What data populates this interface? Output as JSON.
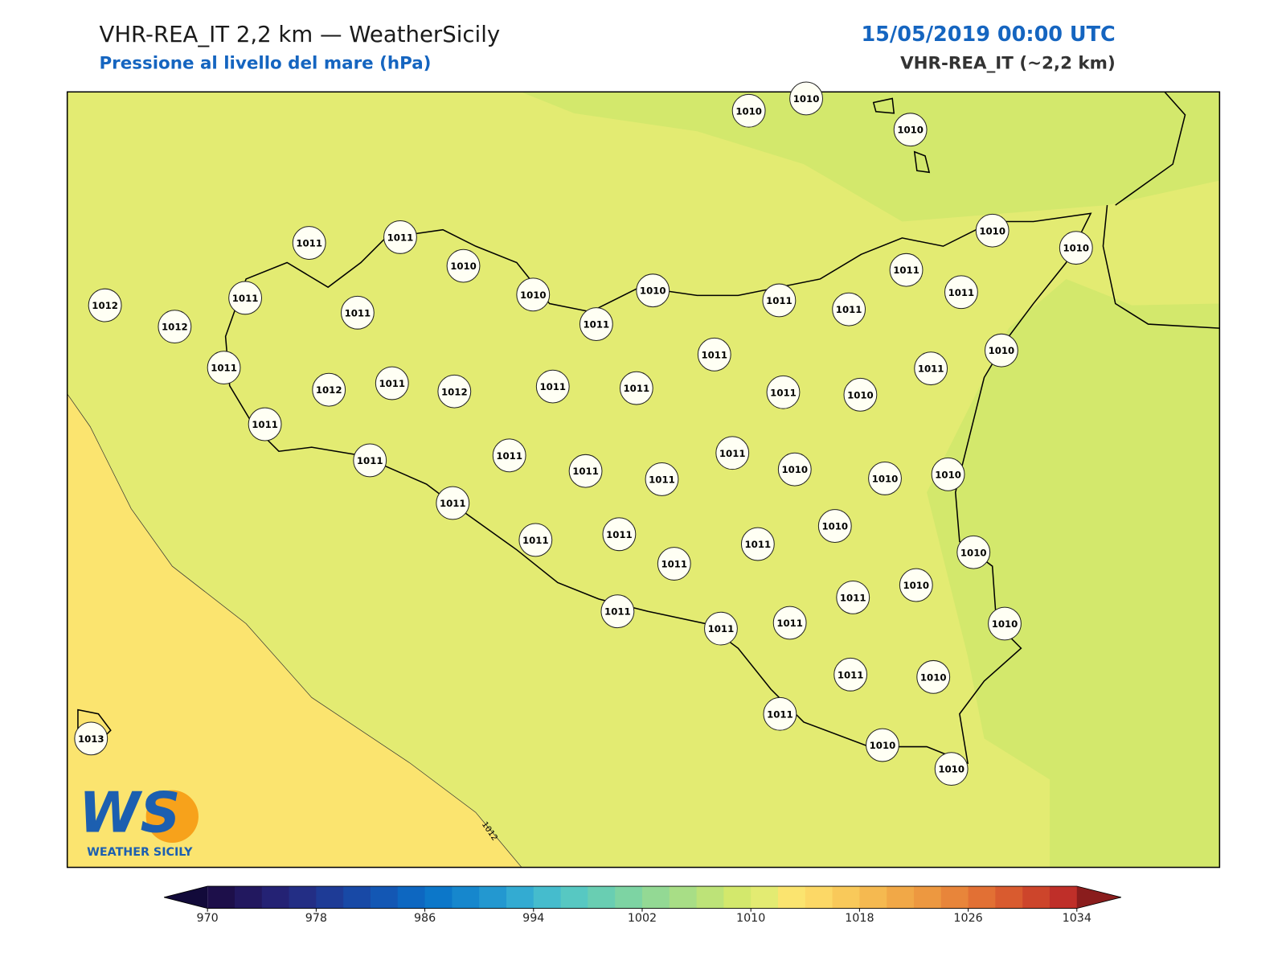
{
  "header": {
    "title": "VHR-REA_IT 2,2 km — WeatherSicily",
    "subtitle": "Pressione al livello del mare (hPa)",
    "date": "15/05/2019 00:00 UTC",
    "model": "VHR-REA_IT (~2,2 km)"
  },
  "map": {
    "contour_label": "1012",
    "stations": [
      1010,
      1010,
      1010,
      1011,
      1011,
      1010,
      1010,
      1010,
      1012,
      1011,
      1010,
      1010,
      1011,
      1011,
      1012,
      1011,
      1011,
      1011,
      1011,
      1011,
      1011,
      1010,
      1011,
      1012,
      1011,
      1012,
      1011,
      1011,
      1011,
      1010,
      1011,
      1011,
      1011,
      1011,
      1011,
      1011,
      1010,
      1010,
      1010,
      1011,
      1010,
      1011,
      1011,
      1011,
      1010,
      1011,
      1010,
      1011,
      1011,
      1011,
      1011,
      1010,
      1011,
      1010,
      1013,
      1011,
      1010,
      1010
    ]
  },
  "logo": {
    "text": "WS",
    "caption": "WEATHER SICILY"
  },
  "colorbar": {
    "lim": [
      970,
      1034
    ],
    "ticks": [
      970,
      978,
      986,
      994,
      1002,
      1010,
      1018,
      1026,
      1034
    ],
    "colors": [
      "#1d0f4a",
      "#22185f",
      "#242274",
      "#232e85",
      "#1e3b96",
      "#1849a6",
      "#1357b4",
      "#0d67c1",
      "#0c77c9",
      "#1687cd",
      "#2398d0",
      "#33abd2",
      "#45bccd",
      "#57c8c2",
      "#69ceb2",
      "#7dd4a3",
      "#93d994",
      "#a8de86",
      "#bde378",
      "#d3e86c",
      "#e3eb72",
      "#fbe46f",
      "#fcd866",
      "#f9c95a",
      "#f5b950",
      "#f1a847",
      "#ed9840",
      "#e8853a",
      "#e27034",
      "#d95b2f",
      "#cd452b",
      "#bf2f29"
    ],
    "under_color": "#120a3a",
    "over_color": "#8a1d1d"
  }
}
